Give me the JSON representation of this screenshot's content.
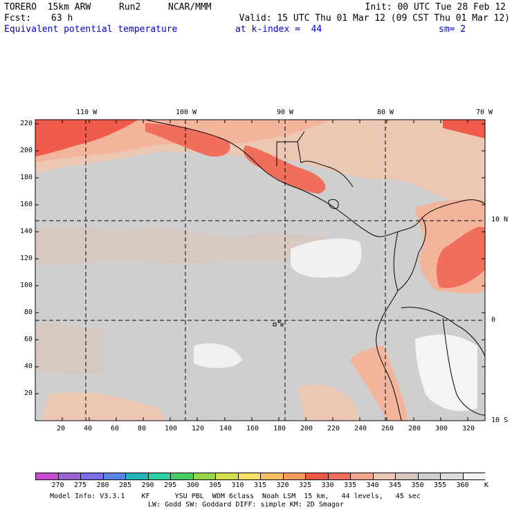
{
  "header": {
    "model": "TORERO  15km ARW",
    "run": "Run2",
    "org": "NCAR/MMM",
    "init": "Init: 00 UTC Tue 28 Feb 12",
    "fcst_label": "Fcst:",
    "fcst_value": "63 h",
    "valid": "Valid: 15 UTC Thu 01 Mar 12 (09 CST Thu 01 Mar 12)",
    "field": "Equivalent potential temperature",
    "level": "at k-index =  44",
    "smooth": "sm= 2"
  },
  "map": {
    "lon_labels": [
      "110 W",
      "100 W",
      "90 W",
      "80 W",
      "70 W"
    ],
    "lat_labels": [
      "10 N",
      "0",
      "10 S"
    ],
    "y_ticks": [
      "20",
      "40",
      "60",
      "80",
      "100",
      "120",
      "140",
      "160",
      "180",
      "200",
      "220"
    ],
    "x_ticks": [
      "20",
      "40",
      "60",
      "80",
      "100",
      "120",
      "140",
      "160",
      "180",
      "200",
      "220",
      "240",
      "260",
      "280",
      "300",
      "320"
    ],
    "colors": {
      "hot": "#f05a4a",
      "warm": "#f28a6e",
      "mild": "#f2b49a",
      "pale": "#ecc8b4",
      "beige": "#d7c9c0",
      "gray": "#cfcfcf",
      "lightgray": "#dadada",
      "white": "#f4f4f4"
    }
  },
  "colorbar": {
    "labels": [
      "270",
      "275",
      "280",
      "285",
      "290",
      "295",
      "300",
      "305",
      "310",
      "315",
      "320",
      "325",
      "330",
      "335",
      "340",
      "345",
      "350",
      "355",
      "360"
    ],
    "unit": "K",
    "colors": [
      "#c84ad0",
      "#9a64d2",
      "#7a6cec",
      "#5a84e4",
      "#26b4bc",
      "#2cd0a0",
      "#4ccc64",
      "#9ad44c",
      "#d8e04c",
      "#f6e064",
      "#f6c060",
      "#f49a5a",
      "#f05a4a",
      "#f06e5c",
      "#f2a48a",
      "#ecc8b4",
      "#d7c9c0",
      "#cfcfcf",
      "#dcdcdc",
      "#f4f4f4"
    ]
  },
  "footer": {
    "line1": "Model Info: V3.3.1    KF      YSU PBL  WDM 6class  Noah LSM  15 km,   44 levels,   45 sec",
    "line2": "LW: Godd SW: Goddard DIFF: simple KM: 2D Smagor"
  }
}
